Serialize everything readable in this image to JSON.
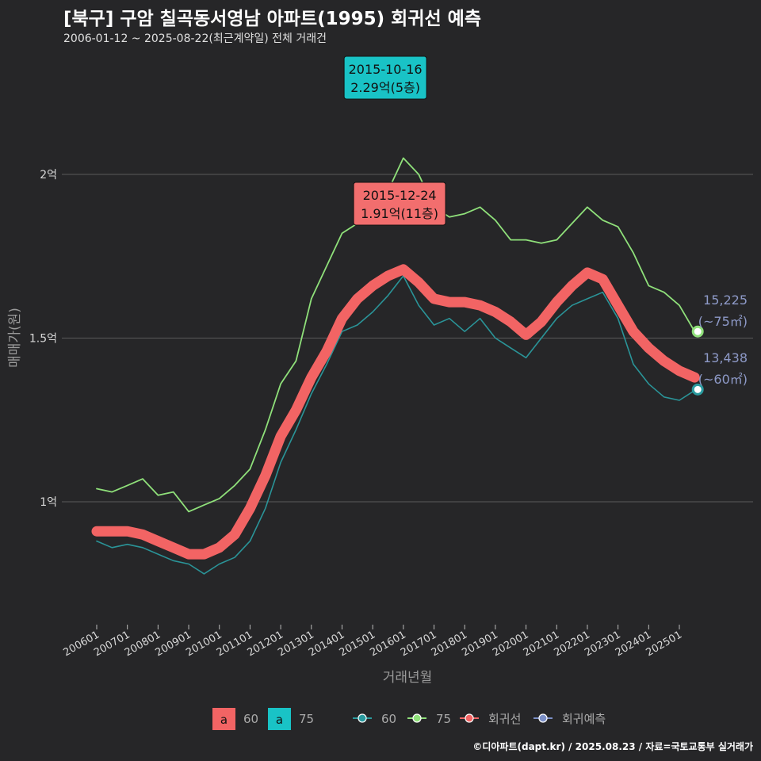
{
  "title": "[북구] 구암 칠곡동서영남 아파트(1995) 회귀선 예측",
  "subtitle": "2006-01-12 ~ 2025-08-22(최근계약일) 전체 거래건",
  "caption": "©디아파트(dapt.kr) / 2025.08.23 / 자료=국토교통부 실거래가",
  "colors": {
    "background": "#262628",
    "series_60": "#2a9a9e",
    "series_75": "#8fe07a",
    "regression": "#f26464",
    "forecast": "#7b8fc7",
    "annot_75_bg": "#19c3c6",
    "annot_60_bg": "#f26e6e",
    "grid": "#5a5a5a",
    "end_label": "#8e9ac8"
  },
  "chart_data": {
    "type": "line",
    "xlabel": "거래년월",
    "ylabel": "매매가(원)",
    "x_ticks": [
      "200601",
      "200701",
      "200801",
      "200901",
      "201001",
      "201101",
      "201201",
      "201301",
      "201401",
      "201501",
      "201601",
      "201701",
      "201801",
      "201901",
      "202001",
      "202101",
      "202201",
      "202301",
      "202401",
      "202501"
    ],
    "y_ticks": [
      {
        "value": 1.0,
        "label": "1억"
      },
      {
        "value": 1.5,
        "label": "1.5억"
      },
      {
        "value": 2.0,
        "label": "2억"
      }
    ],
    "ylim": [
      0.6,
      2.45
    ],
    "grid": true,
    "series": [
      {
        "name": "60",
        "style": "thin-line",
        "points": [
          [
            2006.0,
            0.88
          ],
          [
            2006.5,
            0.86
          ],
          [
            2007.0,
            0.87
          ],
          [
            2007.5,
            0.86
          ],
          [
            2008.0,
            0.84
          ],
          [
            2008.5,
            0.82
          ],
          [
            2009.0,
            0.81
          ],
          [
            2009.5,
            0.78
          ],
          [
            2010.0,
            0.81
          ],
          [
            2010.5,
            0.83
          ],
          [
            2011.0,
            0.88
          ],
          [
            2011.5,
            0.98
          ],
          [
            2012.0,
            1.12
          ],
          [
            2012.5,
            1.22
          ],
          [
            2013.0,
            1.33
          ],
          [
            2013.5,
            1.42
          ],
          [
            2014.0,
            1.52
          ],
          [
            2014.5,
            1.54
          ],
          [
            2015.0,
            1.58
          ],
          [
            2015.5,
            1.63
          ],
          [
            2016.0,
            1.69
          ],
          [
            2016.5,
            1.6
          ],
          [
            2017.0,
            1.54
          ],
          [
            2017.5,
            1.56
          ],
          [
            2018.0,
            1.52
          ],
          [
            2018.5,
            1.56
          ],
          [
            2019.0,
            1.5
          ],
          [
            2019.5,
            1.47
          ],
          [
            2020.0,
            1.44
          ],
          [
            2020.5,
            1.5
          ],
          [
            2021.0,
            1.56
          ],
          [
            2021.5,
            1.6
          ],
          [
            2022.0,
            1.62
          ],
          [
            2022.5,
            1.64
          ],
          [
            2023.0,
            1.56
          ],
          [
            2023.5,
            1.42
          ],
          [
            2024.0,
            1.36
          ],
          [
            2024.5,
            1.32
          ],
          [
            2025.0,
            1.31
          ],
          [
            2025.5,
            1.34
          ]
        ]
      },
      {
        "name": "75",
        "style": "thin-line",
        "points": [
          [
            2006.0,
            1.04
          ],
          [
            2006.5,
            1.03
          ],
          [
            2007.0,
            1.05
          ],
          [
            2007.5,
            1.07
          ],
          [
            2008.0,
            1.02
          ],
          [
            2008.5,
            1.03
          ],
          [
            2009.0,
            0.97
          ],
          [
            2009.5,
            0.99
          ],
          [
            2010.0,
            1.01
          ],
          [
            2010.5,
            1.05
          ],
          [
            2011.0,
            1.1
          ],
          [
            2011.5,
            1.22
          ],
          [
            2012.0,
            1.36
          ],
          [
            2012.5,
            1.43
          ],
          [
            2013.0,
            1.62
          ],
          [
            2013.5,
            1.72
          ],
          [
            2014.0,
            1.82
          ],
          [
            2014.5,
            1.85
          ],
          [
            2015.0,
            1.9
          ],
          [
            2015.5,
            1.95
          ],
          [
            2016.0,
            2.05
          ],
          [
            2016.5,
            2.0
          ],
          [
            2017.0,
            1.9
          ],
          [
            2017.5,
            1.87
          ],
          [
            2018.0,
            1.88
          ],
          [
            2018.5,
            1.9
          ],
          [
            2019.0,
            1.86
          ],
          [
            2019.5,
            1.8
          ],
          [
            2020.0,
            1.8
          ],
          [
            2020.5,
            1.79
          ],
          [
            2021.0,
            1.8
          ],
          [
            2021.5,
            1.85
          ],
          [
            2022.0,
            1.9
          ],
          [
            2022.5,
            1.86
          ],
          [
            2023.0,
            1.84
          ],
          [
            2023.5,
            1.76
          ],
          [
            2024.0,
            1.66
          ],
          [
            2024.5,
            1.64
          ],
          [
            2025.0,
            1.6
          ],
          [
            2025.5,
            1.52
          ]
        ]
      },
      {
        "name": "회귀선",
        "style": "thick-line",
        "points": [
          [
            2006.0,
            0.91
          ],
          [
            2007.0,
            0.91
          ],
          [
            2007.5,
            0.9
          ],
          [
            2008.0,
            0.88
          ],
          [
            2008.5,
            0.86
          ],
          [
            2009.0,
            0.84
          ],
          [
            2009.5,
            0.84
          ],
          [
            2010.0,
            0.86
          ],
          [
            2010.5,
            0.9
          ],
          [
            2011.0,
            0.98
          ],
          [
            2011.5,
            1.08
          ],
          [
            2012.0,
            1.2
          ],
          [
            2012.5,
            1.28
          ],
          [
            2013.0,
            1.38
          ],
          [
            2013.5,
            1.46
          ],
          [
            2014.0,
            1.56
          ],
          [
            2014.5,
            1.62
          ],
          [
            2015.0,
            1.66
          ],
          [
            2015.5,
            1.69
          ],
          [
            2016.0,
            1.71
          ],
          [
            2016.5,
            1.67
          ],
          [
            2017.0,
            1.62
          ],
          [
            2017.5,
            1.61
          ],
          [
            2018.0,
            1.61
          ],
          [
            2018.5,
            1.6
          ],
          [
            2019.0,
            1.58
          ],
          [
            2019.5,
            1.55
          ],
          [
            2020.0,
            1.51
          ],
          [
            2020.5,
            1.55
          ],
          [
            2021.0,
            1.61
          ],
          [
            2021.5,
            1.66
          ],
          [
            2022.0,
            1.7
          ],
          [
            2022.5,
            1.68
          ],
          [
            2023.0,
            1.6
          ],
          [
            2023.5,
            1.52
          ],
          [
            2024.0,
            1.47
          ],
          [
            2024.5,
            1.43
          ],
          [
            2025.0,
            1.4
          ],
          [
            2025.5,
            1.38
          ]
        ]
      }
    ],
    "annotations": [
      {
        "date": "2015-10-16",
        "value_text": "2.29억(5층)",
        "x": 2015.8,
        "y": 2.29,
        "series": "75"
      },
      {
        "date": "2015-12-24",
        "value_text": "1.91억(11층)",
        "x": 2015.98,
        "y": 1.91,
        "series": "60"
      }
    ],
    "forecast_points": [
      {
        "series": "75",
        "x": 2025.6,
        "y": 1.52,
        "label": "15,225",
        "unit": "(~75㎡)"
      },
      {
        "series": "60",
        "x": 2025.6,
        "y": 1.343,
        "label": "13,438",
        "unit": "(~60㎡)"
      }
    ],
    "legend": {
      "position": "bottom",
      "fill_items": [
        {
          "key": "a",
          "label": "60"
        },
        {
          "key": "a",
          "label": "75"
        }
      ],
      "line_items": [
        "60",
        "75",
        "회귀선",
        "회귀예측"
      ]
    }
  }
}
